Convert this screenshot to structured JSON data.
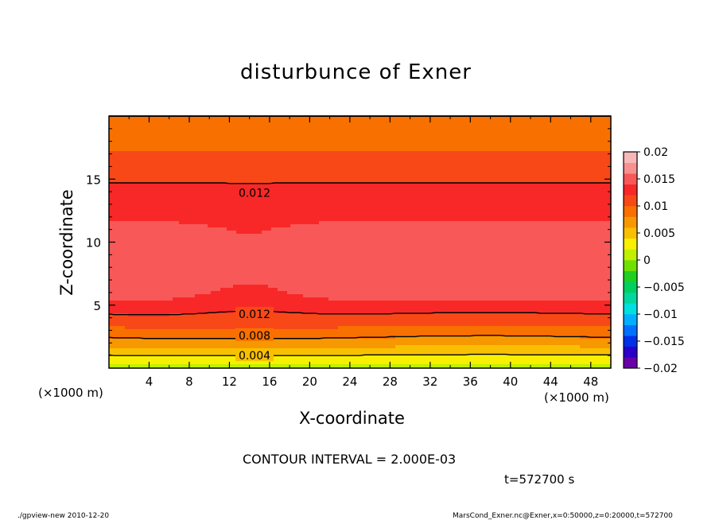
{
  "chart_data": {
    "type": "heatmap",
    "title": "disturbunce of Exner",
    "xlabel": "X-coordinate",
    "ylabel": "Z-coordinate",
    "x_unit": "(×1000 m)",
    "z_unit": "(×1000 m)",
    "xlim": [
      0,
      50
    ],
    "ylim": [
      0,
      20
    ],
    "x_ticks": [
      4,
      8,
      12,
      16,
      20,
      24,
      28,
      32,
      36,
      40,
      44,
      48
    ],
    "y_ticks": [
      5,
      10,
      15
    ],
    "contour_interval_text": "CONTOUR INTERVAL = 2.000E-03",
    "time_text": "t=572700 s",
    "colorbar": {
      "ticks": [
        0.02,
        0.015,
        0.01,
        0.005,
        0,
        -0.005,
        -0.01,
        -0.015,
        -0.02
      ],
      "tick_labels": [
        "0.02",
        "0.015",
        "0.01",
        "0.005",
        "0",
        "−0.005",
        "−0.01",
        "−0.015",
        "−0.02"
      ],
      "range": [
        -0.02,
        0.02
      ],
      "colors": [
        "#6a00a8",
        "#2a00c8",
        "#0030e8",
        "#0070ff",
        "#00b0ff",
        "#00e0e0",
        "#00d8a0",
        "#00d060",
        "#20d020",
        "#70e000",
        "#c0f000",
        "#f8f000",
        "#f8c000",
        "#f89800",
        "#f87000",
        "#f84818",
        "#f82828",
        "#f85858",
        "#f89090",
        "#f8b8b8"
      ]
    },
    "contour_labels": [
      {
        "text": "0.012",
        "x": 14.5,
        "z": 13.9
      },
      {
        "text": "0.012",
        "x": 14.5,
        "z": 4.3
      },
      {
        "text": "0.008",
        "x": 14.5,
        "z": 2.6
      },
      {
        "text": "0.004",
        "x": 14.5,
        "z": 1.0
      }
    ],
    "field_profile_z": [
      0,
      1,
      2,
      3,
      4,
      5,
      6,
      7,
      8,
      9,
      10,
      11,
      12,
      13,
      14,
      15,
      16,
      17,
      18,
      19,
      20
    ],
    "field_profile_value": [
      0.001,
      0.004,
      0.007,
      0.0095,
      0.0115,
      0.0135,
      0.015,
      0.016,
      0.016,
      0.0155,
      0.015,
      0.0145,
      0.0138,
      0.013,
      0.0125,
      0.0118,
      0.011,
      0.0102,
      0.0095,
      0.009,
      0.0085
    ]
  },
  "footer": {
    "left": "./gpview-new  2010-12-20",
    "right": "MarsCond_Exner.nc@Exner,x=0:50000,z=0:20000,t=572700"
  }
}
